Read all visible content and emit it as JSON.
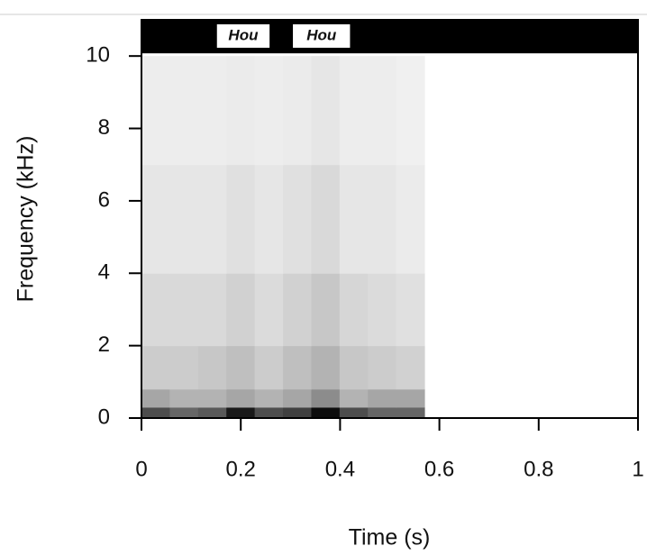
{
  "chart_data": {
    "type": "spectrogram",
    "x_label": "Time (s)",
    "y_label": "Frequency (kHz)",
    "xlim": [
      0,
      1
    ],
    "ylim": [
      0,
      11
    ],
    "xticks": [
      0,
      0.2,
      0.4,
      0.6,
      0.8,
      1
    ],
    "yticks": [
      0,
      2,
      4,
      6,
      8,
      10
    ],
    "t_edges": [
      0,
      0.057,
      0.114,
      0.171,
      0.228,
      0.285,
      0.342,
      0.399,
      0.456,
      0.513,
      0.57
    ],
    "f_edges": [
      0,
      0.3,
      0.8,
      2,
      4,
      7,
      10
    ],
    "intensity": [
      [
        0.7,
        0.6,
        0.65,
        0.9,
        0.7,
        0.75,
        0.95,
        0.7,
        0.6,
        0.6
      ],
      [
        0.35,
        0.3,
        0.3,
        0.35,
        0.3,
        0.35,
        0.45,
        0.3,
        0.35,
        0.35
      ],
      [
        0.2,
        0.2,
        0.22,
        0.25,
        0.2,
        0.25,
        0.3,
        0.22,
        0.2,
        0.18
      ],
      [
        0.15,
        0.15,
        0.15,
        0.18,
        0.14,
        0.18,
        0.22,
        0.16,
        0.14,
        0.12
      ],
      [
        0.1,
        0.1,
        0.1,
        0.12,
        0.1,
        0.12,
        0.15,
        0.1,
        0.1,
        0.08
      ],
      [
        0.07,
        0.07,
        0.07,
        0.08,
        0.07,
        0.08,
        0.1,
        0.07,
        0.07,
        0.06
      ]
    ],
    "annotations": [
      {
        "text": "Hou",
        "x": [
          0.152,
          0.258
        ]
      },
      {
        "text": "Hou",
        "x": [
          0.305,
          0.42
        ]
      }
    ]
  }
}
